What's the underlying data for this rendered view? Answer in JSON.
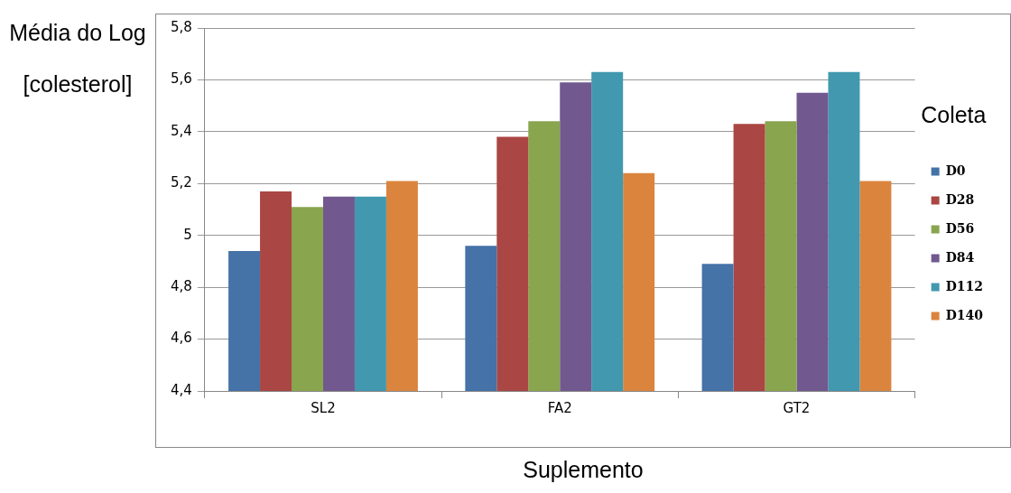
{
  "chart_data": {
    "type": "bar",
    "xlabel": "Suplemento",
    "ylabel": "Média do Log [colesterol]",
    "legend_title": "Coleta",
    "categories": [
      "SL2",
      "FA2",
      "GT2"
    ],
    "series": [
      {
        "name": "D0",
        "color": "#4572a7",
        "values": [
          4.94,
          4.96,
          4.89
        ]
      },
      {
        "name": "D28",
        "color": "#aa4643",
        "values": [
          5.17,
          5.38,
          5.43
        ]
      },
      {
        "name": "D56",
        "color": "#89a54e",
        "values": [
          5.11,
          5.44,
          5.44
        ]
      },
      {
        "name": "D84",
        "color": "#71588f",
        "values": [
          5.15,
          5.59,
          5.55
        ]
      },
      {
        "name": "D112",
        "color": "#4198af",
        "values": [
          5.15,
          5.63,
          5.63
        ]
      },
      {
        "name": "D140",
        "color": "#db843d",
        "values": [
          5.21,
          5.24,
          5.21
        ]
      }
    ],
    "ylim": [
      4.4,
      5.8
    ],
    "yticks": [
      {
        "value": 4.4,
        "label": "4,4"
      },
      {
        "value": 4.6,
        "label": "4,6"
      },
      {
        "value": 4.8,
        "label": "4,8"
      },
      5,
      {
        "value": 5.2,
        "label": "5,2"
      },
      {
        "value": 5.4,
        "label": "5,4"
      },
      {
        "value": 5.6,
        "label": "5,6"
      },
      {
        "value": 5.8,
        "label": "5,8"
      }
    ],
    "grid": "y",
    "legend": "right"
  }
}
